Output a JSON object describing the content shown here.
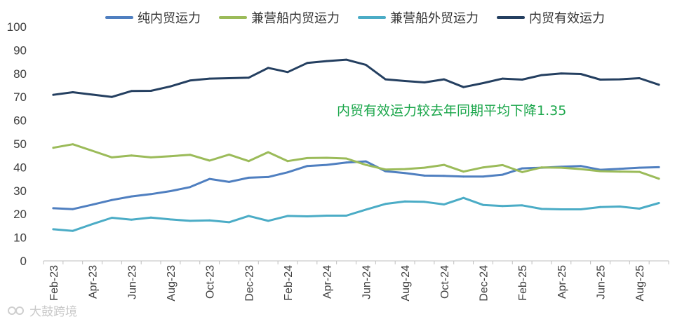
{
  "chart_data": {
    "type": "line",
    "title": "",
    "xlabel": "",
    "ylabel": "",
    "ylim": [
      0,
      100
    ],
    "yticks": [
      0,
      10,
      20,
      30,
      40,
      50,
      60,
      70,
      80,
      90,
      100
    ],
    "categories": [
      "Feb-23",
      "Mar-23",
      "Apr-23",
      "May-23",
      "Jun-23",
      "Jul-23",
      "Aug-23",
      "Sep-23",
      "Oct-23",
      "Nov-23",
      "Dec-23",
      "Jan-24",
      "Feb-24",
      "Mar-24",
      "Apr-24",
      "May-24",
      "Jun-24",
      "Jul-24",
      "Aug-24",
      "Sep-24",
      "Oct-24",
      "Nov-24",
      "Dec-24",
      "Jan-25",
      "Feb-25",
      "Mar-25",
      "Apr-25",
      "May-25",
      "Jun-25",
      "Jul-25",
      "Aug-25",
      "Sep-25"
    ],
    "tick_labels": [
      "Feb-23",
      "Apr-23",
      "Jun-23",
      "Aug-23",
      "Oct-23",
      "Dec-23",
      "Feb-24",
      "Apr-24",
      "Jun-24",
      "Aug-24",
      "Oct-24",
      "Dec-24",
      "Feb-25",
      "Apr-25",
      "Jun-25",
      "Aug-25"
    ],
    "series": [
      {
        "name": "纯内贸运力",
        "color": "#4f7fc0",
        "values": [
          22.5,
          22.1,
          24,
          26,
          27.5,
          28.5,
          29.8,
          31.5,
          35,
          33.7,
          35.5,
          35.8,
          37.8,
          40.5,
          41,
          42,
          42.5,
          38.3,
          37.5,
          36.4,
          36.3,
          36,
          36,
          36.8,
          39.5,
          39.8,
          40.2,
          40.5,
          38.9,
          39.3,
          39.8,
          40
        ]
      },
      {
        "name": "兼营船内贸运力",
        "color": "#9bbb59",
        "values": [
          48.3,
          49.8,
          47,
          44.2,
          45,
          44.2,
          44.7,
          45.3,
          42.8,
          45.4,
          42.6,
          46.4,
          42.6,
          43.9,
          44,
          43.7,
          41,
          39,
          39.2,
          39.8,
          41,
          38.1,
          39.9,
          40.9,
          37.9,
          39.9,
          39.8,
          39.2,
          38.3,
          38.1,
          38,
          35.1
        ]
      },
      {
        "name": "兼营船外贸运力",
        "color": "#4bacc6",
        "values": [
          13.5,
          12.8,
          15.7,
          18.4,
          17.6,
          18.5,
          17.7,
          17.1,
          17.3,
          16.5,
          19.2,
          17.1,
          19.2,
          19,
          19.3,
          19.3,
          21.9,
          24.3,
          25.4,
          25.2,
          24.1,
          26.9,
          23.9,
          23.4,
          23.7,
          22.2,
          22,
          22,
          23,
          23.2,
          22.3,
          24.7
        ]
      },
      {
        "name": "内贸有效运力",
        "color": "#243f60",
        "values": [
          70.9,
          72,
          71,
          70,
          72.5,
          72.6,
          74.5,
          77,
          77.8,
          78,
          78.2,
          82.4,
          80.6,
          84.5,
          85.3,
          85.9,
          83.7,
          77.5,
          76.8,
          76.2,
          77.5,
          74.2,
          75.9,
          77.8,
          77.4,
          79.3,
          80,
          79.8,
          77.4,
          77.5,
          78,
          75.2
        ]
      }
    ],
    "annotation": "内贸有效运力较去年同期平均下降1.35",
    "legend_position": "top"
  },
  "watermark": "大鼓跨境"
}
